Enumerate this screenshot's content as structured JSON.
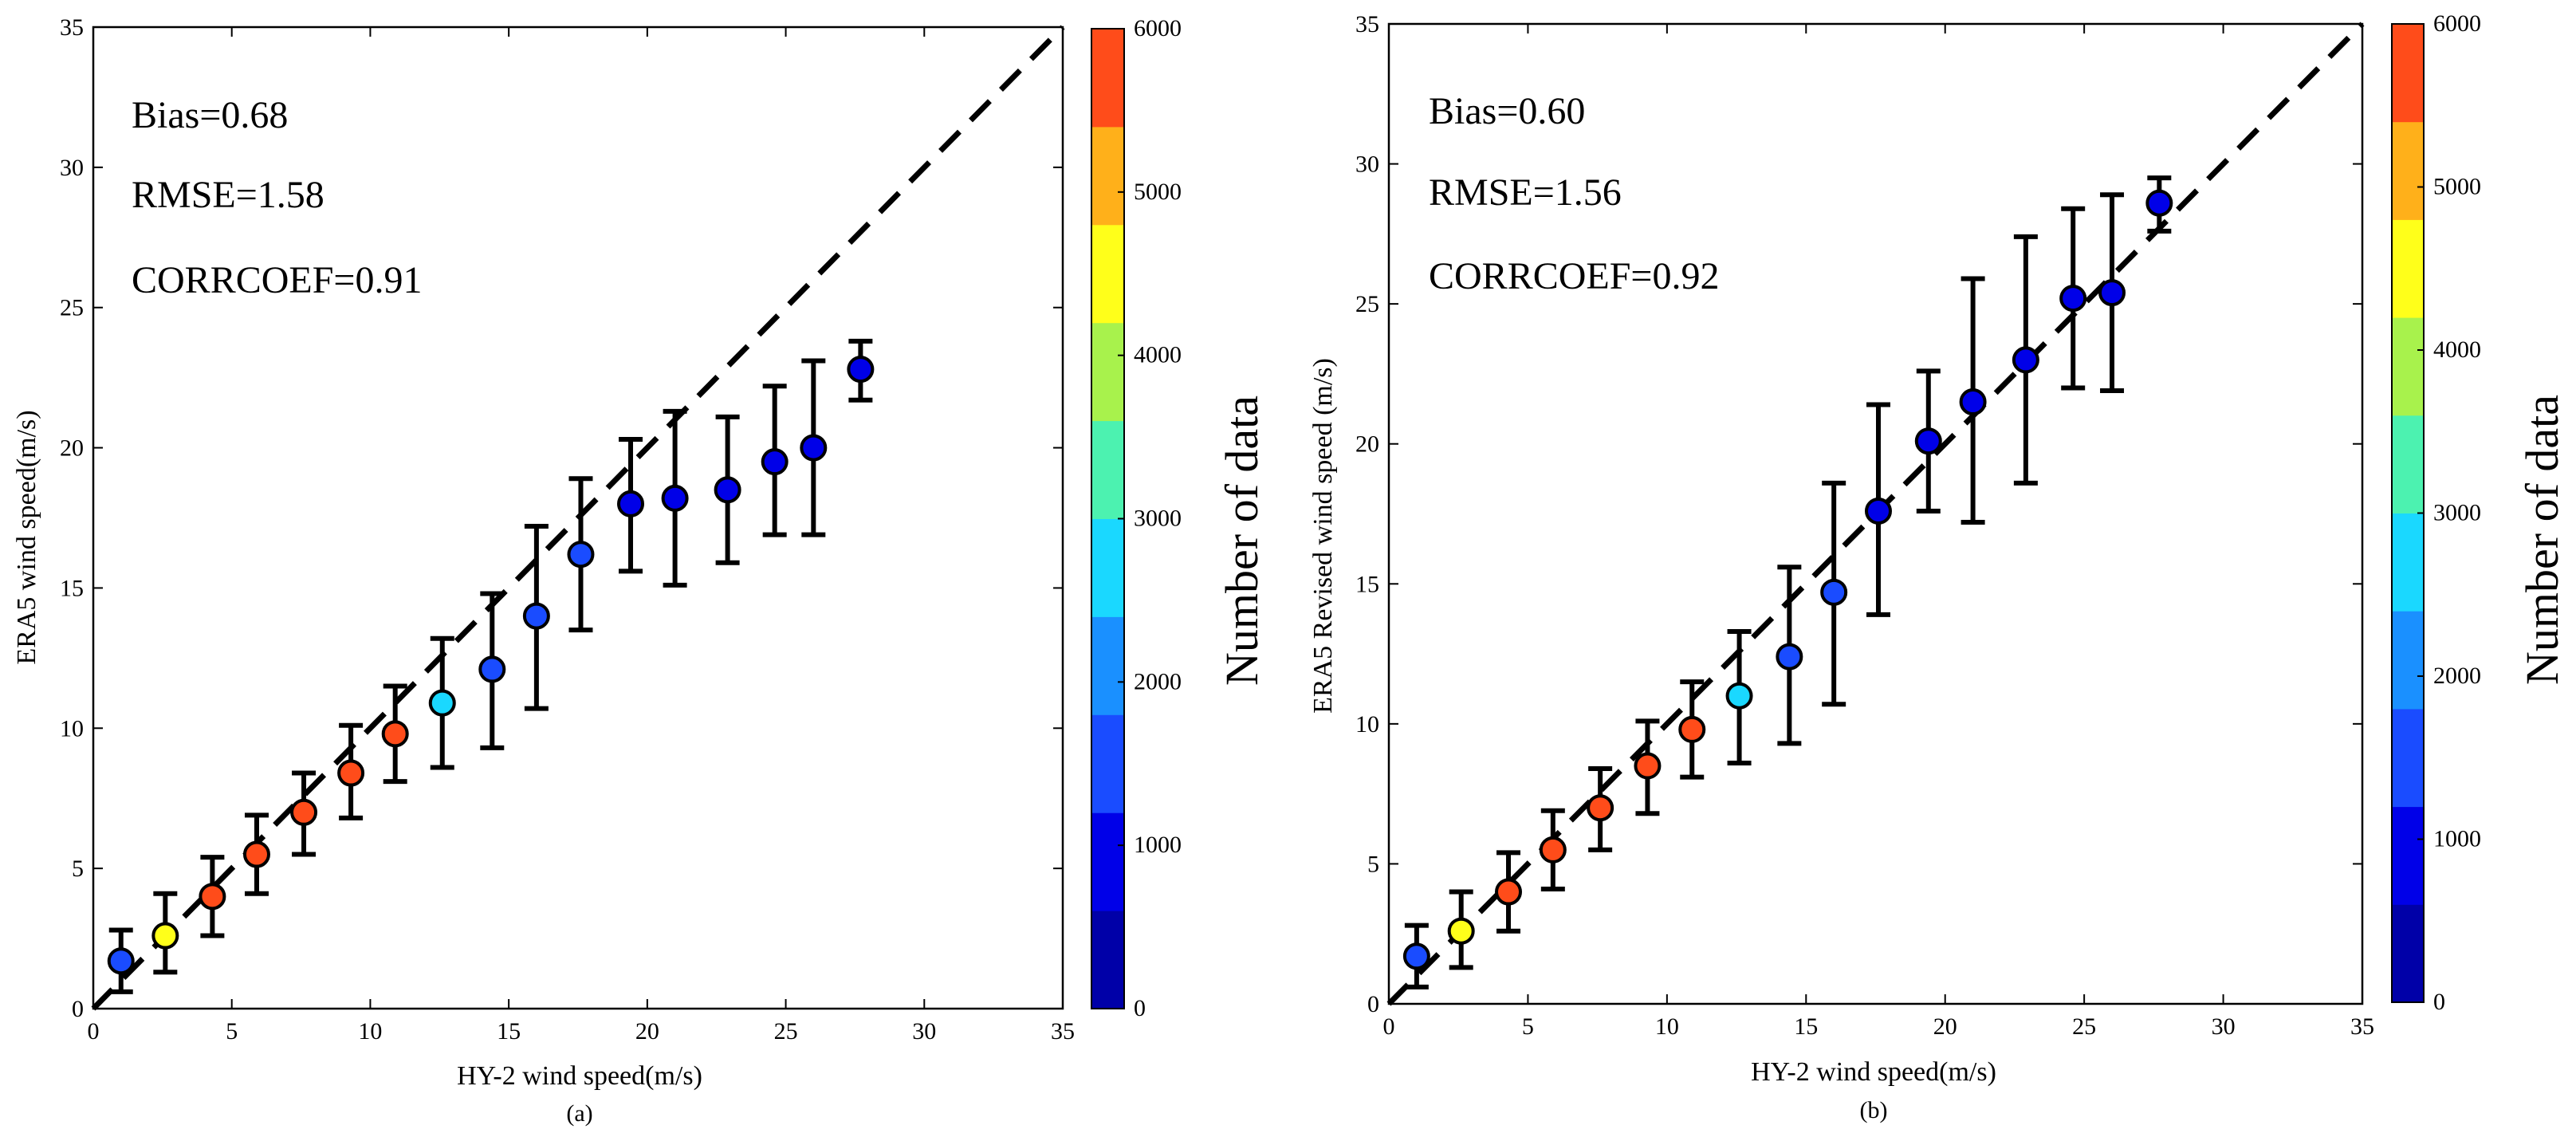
{
  "chart_data": [
    {
      "type": "scatter",
      "panel_tag": "(a)",
      "xlabel": "HY-2 wind speed(m/s)",
      "ylabel": "ERA5 wind speed(m/s)",
      "xlim": [
        0,
        35
      ],
      "ylim": [
        0,
        35
      ],
      "xticks": [
        "0",
        "5",
        "10",
        "15",
        "20",
        "25",
        "30",
        "35"
      ],
      "yticks": [
        "0",
        "5",
        "10",
        "15",
        "20",
        "25",
        "30",
        "35"
      ],
      "reference_line": "y = x (dashed)",
      "stats": [
        "Bias=0.68",
        "RMSE=1.58",
        "CORRCOEF=0.91"
      ],
      "points": [
        {
          "x": 1.0,
          "y": 1.7,
          "err_low": 0.6,
          "err_high": 2.8,
          "count": 1500
        },
        {
          "x": 2.6,
          "y": 2.6,
          "err_low": 1.3,
          "err_high": 4.1,
          "count": 4400
        },
        {
          "x": 4.3,
          "y": 4.0,
          "err_low": 2.6,
          "err_high": 5.4,
          "count": 5500
        },
        {
          "x": 5.9,
          "y": 5.5,
          "err_low": 4.1,
          "err_high": 6.9,
          "count": 5500
        },
        {
          "x": 7.6,
          "y": 7.0,
          "err_low": 5.5,
          "err_high": 8.4,
          "count": 5500
        },
        {
          "x": 9.3,
          "y": 8.4,
          "err_low": 6.8,
          "err_high": 10.1,
          "count": 5500
        },
        {
          "x": 10.9,
          "y": 9.8,
          "err_low": 8.1,
          "err_high": 11.5,
          "count": 5500
        },
        {
          "x": 12.6,
          "y": 10.9,
          "err_low": 8.6,
          "err_high": 13.2,
          "count": 2800
        },
        {
          "x": 14.4,
          "y": 12.1,
          "err_low": 9.3,
          "err_high": 14.8,
          "count": 1700
        },
        {
          "x": 16.0,
          "y": 14.0,
          "err_low": 10.7,
          "err_high": 17.2,
          "count": 1500
        },
        {
          "x": 17.6,
          "y": 16.2,
          "err_low": 13.5,
          "err_high": 18.9,
          "count": 1300
        },
        {
          "x": 19.4,
          "y": 18.0,
          "err_low": 15.6,
          "err_high": 20.3,
          "count": 1000
        },
        {
          "x": 21.0,
          "y": 18.2,
          "err_low": 15.1,
          "err_high": 21.3,
          "count": 1000
        },
        {
          "x": 22.9,
          "y": 18.5,
          "err_low": 15.9,
          "err_high": 21.1,
          "count": 1000
        },
        {
          "x": 24.6,
          "y": 19.5,
          "err_low": 16.9,
          "err_high": 22.2,
          "count": 1000
        },
        {
          "x": 26.0,
          "y": 20.0,
          "err_low": 16.9,
          "err_high": 23.1,
          "count": 1000
        },
        {
          "x": 27.7,
          "y": 22.8,
          "err_low": 21.7,
          "err_high": 23.8,
          "count": 1000
        }
      ],
      "colorbar": {
        "label": "Number of data",
        "range": [
          0,
          6000
        ],
        "ticks": [
          "0",
          "1000",
          "2000",
          "3000",
          "4000",
          "5000",
          "6000"
        ],
        "colors": [
          "#0000a8",
          "#0000e8",
          "#1a4cff",
          "#1a90ff",
          "#1ad8ff",
          "#4cf2b0",
          "#a8f24c",
          "#ffff1a",
          "#ffb01a",
          "#ff4c1a"
        ]
      }
    },
    {
      "type": "scatter",
      "panel_tag": "(b)",
      "xlabel": "HY-2 wind speed(m/s)",
      "ylabel": "ERA5 Revised wind speed (m/s)",
      "xlim": [
        0,
        35
      ],
      "ylim": [
        0,
        35
      ],
      "xticks": [
        "0",
        "5",
        "10",
        "15",
        "20",
        "25",
        "30",
        "35"
      ],
      "yticks": [
        "0",
        "5",
        "10",
        "15",
        "20",
        "25",
        "30",
        "35"
      ],
      "reference_line": "y = x (dashed)",
      "stats": [
        "Bias=0.60",
        "RMSE=1.56",
        "CORRCOEF=0.92"
      ],
      "points": [
        {
          "x": 1.0,
          "y": 1.7,
          "err_low": 0.6,
          "err_high": 2.8,
          "count": 1500
        },
        {
          "x": 2.6,
          "y": 2.6,
          "err_low": 1.3,
          "err_high": 4.0,
          "count": 4400
        },
        {
          "x": 4.3,
          "y": 4.0,
          "err_low": 2.6,
          "err_high": 5.4,
          "count": 5500
        },
        {
          "x": 5.9,
          "y": 5.5,
          "err_low": 4.1,
          "err_high": 6.9,
          "count": 5500
        },
        {
          "x": 7.6,
          "y": 7.0,
          "err_low": 5.5,
          "err_high": 8.4,
          "count": 5500
        },
        {
          "x": 9.3,
          "y": 8.5,
          "err_low": 6.8,
          "err_high": 10.1,
          "count": 5500
        },
        {
          "x": 10.9,
          "y": 9.8,
          "err_low": 8.1,
          "err_high": 11.5,
          "count": 5500
        },
        {
          "x": 12.6,
          "y": 11.0,
          "err_low": 8.6,
          "err_high": 13.3,
          "count": 2800
        },
        {
          "x": 14.4,
          "y": 12.4,
          "err_low": 9.3,
          "err_high": 15.6,
          "count": 1700
        },
        {
          "x": 16.0,
          "y": 14.7,
          "err_low": 10.7,
          "err_high": 18.6,
          "count": 1500
        },
        {
          "x": 17.6,
          "y": 17.6,
          "err_low": 13.9,
          "err_high": 21.4,
          "count": 1000
        },
        {
          "x": 19.4,
          "y": 20.1,
          "err_low": 17.6,
          "err_high": 22.6,
          "count": 1000
        },
        {
          "x": 21.0,
          "y": 21.5,
          "err_low": 17.2,
          "err_high": 25.9,
          "count": 1000
        },
        {
          "x": 22.9,
          "y": 23.0,
          "err_low": 18.6,
          "err_high": 27.4,
          "count": 1000
        },
        {
          "x": 24.6,
          "y": 25.2,
          "err_low": 22.0,
          "err_high": 28.4,
          "count": 1000
        },
        {
          "x": 26.0,
          "y": 25.4,
          "err_low": 21.9,
          "err_high": 28.9,
          "count": 1000
        },
        {
          "x": 27.7,
          "y": 28.6,
          "err_low": 27.6,
          "err_high": 29.5,
          "count": 1000
        }
      ],
      "colorbar": {
        "label": "Number of data",
        "range": [
          0,
          6000
        ],
        "ticks": [
          "0",
          "1000",
          "2000",
          "3000",
          "4000",
          "5000",
          "6000"
        ],
        "colors": [
          "#0000a8",
          "#0000e8",
          "#1a4cff",
          "#1a90ff",
          "#1ad8ff",
          "#4cf2b0",
          "#a8f24c",
          "#ffff1a",
          "#ffb01a",
          "#ff4c1a"
        ]
      }
    }
  ]
}
